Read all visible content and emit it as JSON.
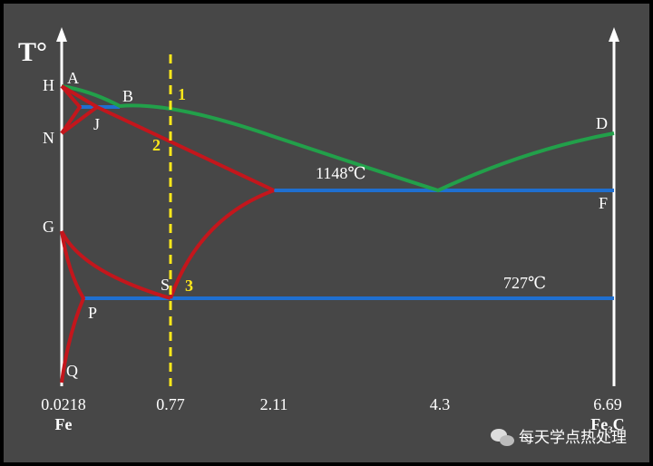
{
  "axis": {
    "title": "T°",
    "x_labels": [
      "0.0218",
      "0.77",
      "2.11",
      "4.3",
      "6.69"
    ],
    "x_left": "Fe",
    "x_right": "Fe₃C"
  },
  "points": {
    "A": "A",
    "H": "H",
    "B": "B",
    "J": "J",
    "N": "N",
    "D": "D",
    "F": "F",
    "G": "G",
    "S": "S",
    "P": "P",
    "Q": "Q"
  },
  "markers": [
    "1",
    "2",
    "3"
  ],
  "temperatures": [
    "1148℃",
    "727℃"
  ],
  "watermark": "每天学点热处理"
}
